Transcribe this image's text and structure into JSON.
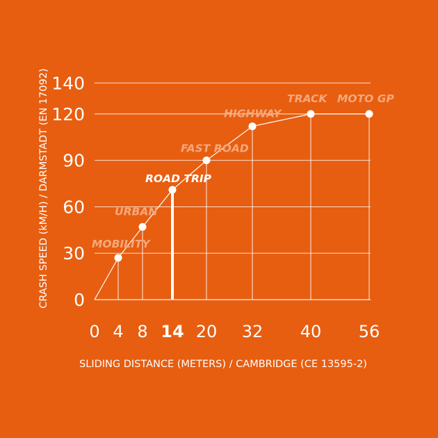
{
  "colors": {
    "background": "#E85E10",
    "foreground": "#FFFFFF",
    "label": "#F5A87C",
    "highlight": "#FFFFFF"
  },
  "chart_data": {
    "type": "line",
    "xlabel": "SLIDING DISTANCE (METERS) / CAMBRIDGE (CE 13595-2)",
    "ylabel": "CRASH SPEED (kM/H) / DARMSTADT (EN 17092)",
    "yticks": [
      0,
      30,
      60,
      90,
      120,
      140
    ],
    "xticks": [
      "0",
      "4",
      "8",
      "14",
      "20",
      "32",
      "40",
      "56"
    ],
    "highlight_x": "14",
    "ylim": [
      0,
      140
    ],
    "grid": "horizontal",
    "points": [
      {
        "label": "MOBILITY",
        "x": 4,
        "y": 27
      },
      {
        "label": "URBAN",
        "x": 8,
        "y": 47
      },
      {
        "label": "ROAD TRIP",
        "x": 14,
        "y": 71,
        "highlight": true
      },
      {
        "label": "FAST ROAD",
        "x": 20,
        "y": 90
      },
      {
        "label": "HIGHWAY",
        "x": 32,
        "y": 112
      },
      {
        "label": "TRACK",
        "x": 40,
        "y": 120
      },
      {
        "label": "MOTO GP",
        "x": 56,
        "y": 120
      }
    ]
  }
}
